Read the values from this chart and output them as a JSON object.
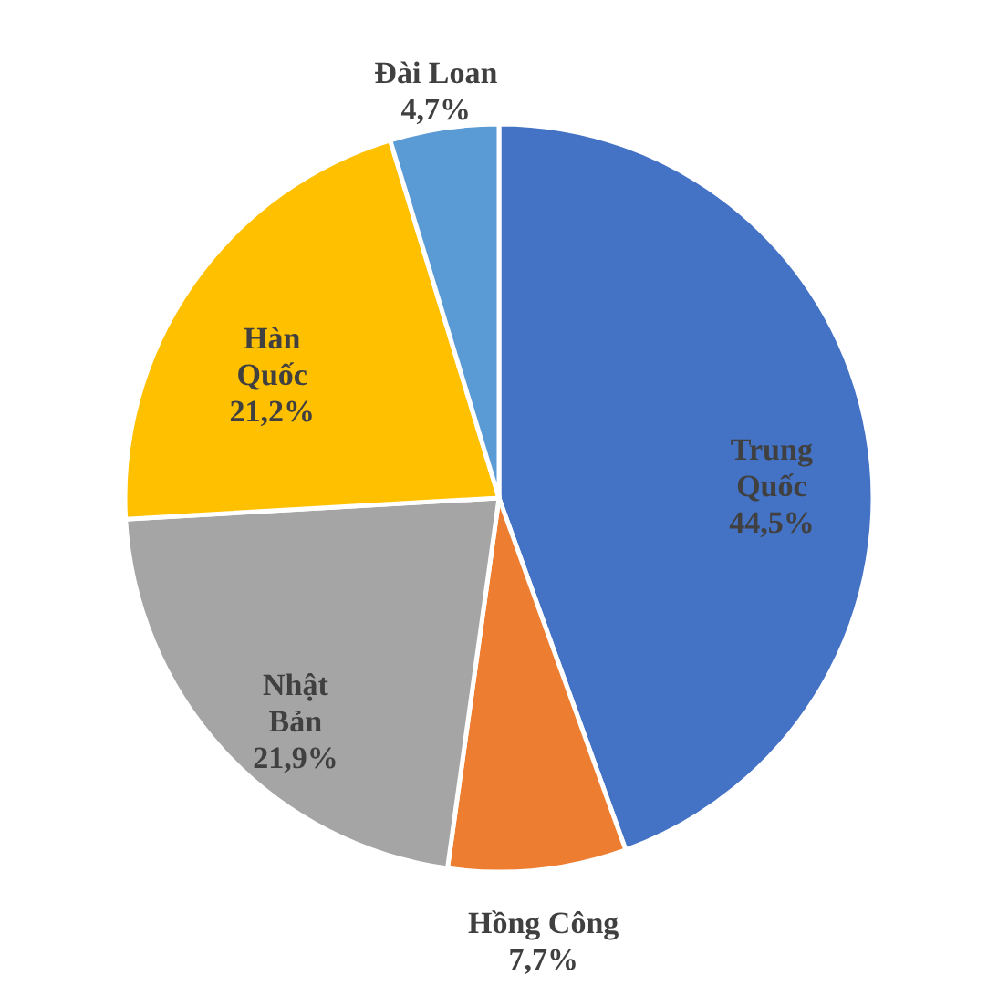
{
  "chart_data": {
    "type": "pie",
    "categories": [
      "Trung Quốc",
      "Hồng Công",
      "Nhật Bản",
      "Hàn Quốc",
      "Đài Loan"
    ],
    "values": [
      44.5,
      7.7,
      21.9,
      21.2,
      4.7
    ],
    "colors": [
      "#4472c4",
      "#ed7d31",
      "#a5a5a5",
      "#ffc000",
      "#5b9bd5"
    ],
    "value_labels": [
      "44,5%",
      "7,7%",
      "21,9%",
      "21,2%",
      "4,7%"
    ]
  }
}
